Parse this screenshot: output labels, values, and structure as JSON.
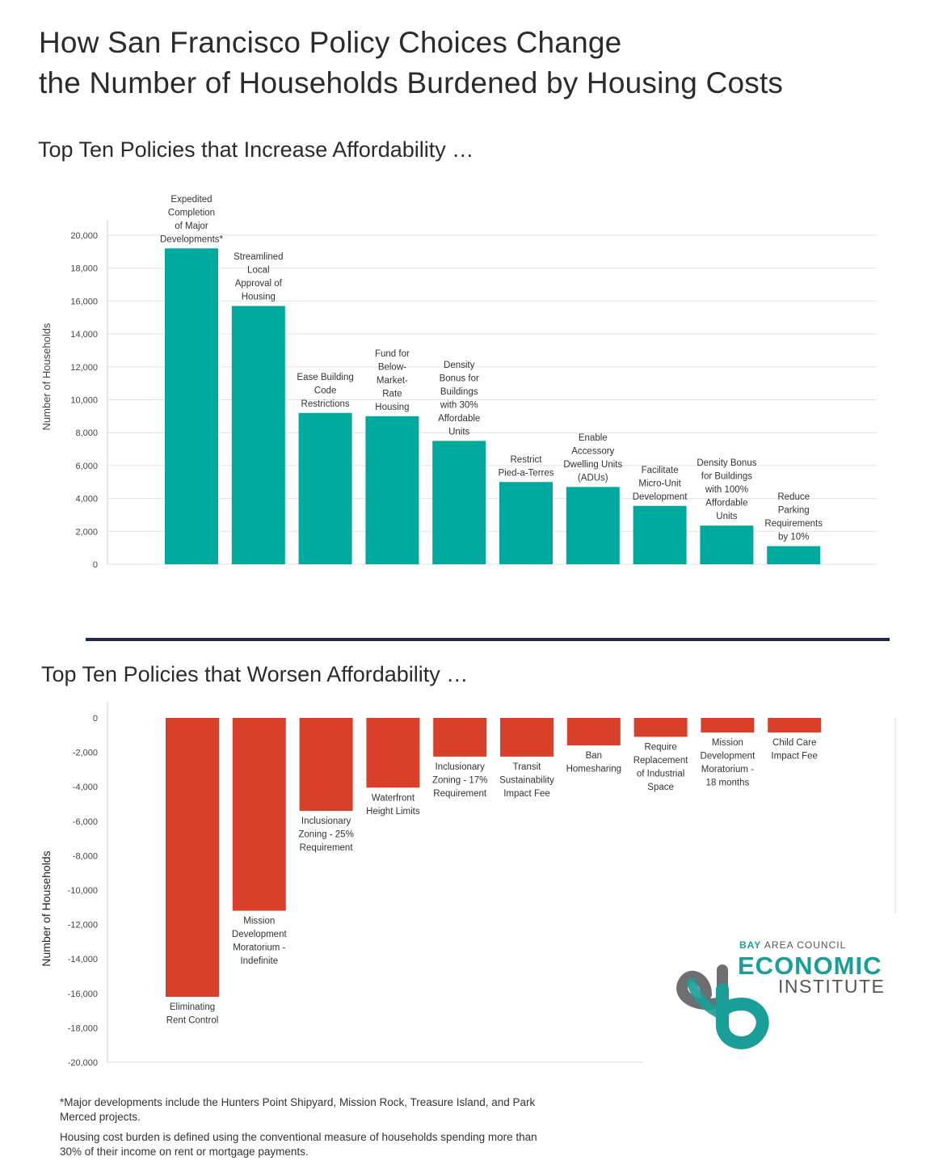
{
  "title": {
    "line1": "How San Francisco Policy Choices Change",
    "line2": "the Number of Households Burdened by Housing Costs"
  },
  "colors": {
    "increase": "#00a99d",
    "worsen": "#d9402a",
    "grid": "#d9d9d9",
    "divider": "#1c2a55",
    "logo_teal": "#1a9e98",
    "logo_gray": "#6d6e71"
  },
  "chart_data": [
    {
      "type": "bar",
      "title": "Top Ten Policies that Increase Affordability …",
      "xlabel": "",
      "ylabel": "Number of Households",
      "ylim": [
        0,
        20000
      ],
      "yticks": [
        0,
        2000,
        4000,
        6000,
        8000,
        10000,
        12000,
        14000,
        16000,
        18000,
        20000
      ],
      "ytick_labels": [
        "0",
        "2,000",
        "4,000",
        "6,000",
        "8,000",
        "10,000",
        "12,000",
        "14,000",
        "16,000",
        "18,000",
        "20,000"
      ],
      "grid": true,
      "categories": [
        [
          "Expedited",
          "Completion",
          "of Major",
          "Developments*"
        ],
        [
          "Streamlined",
          "Local",
          "Approval of",
          "Housing"
        ],
        [
          "Ease Building",
          "Code",
          "Restrictions"
        ],
        [
          "Fund for",
          "Below-",
          "Market-",
          "Rate",
          "Housing"
        ],
        [
          "Density",
          "Bonus for",
          "Buildings",
          "with 30%",
          "Affordable",
          "Units"
        ],
        [
          "Restrict",
          "Pied-a-Terres"
        ],
        [
          "Enable",
          "Accessory",
          "Dwelling Units",
          "(ADUs)"
        ],
        [
          "Facilitate",
          "Micro-Unit",
          "Development"
        ],
        [
          "Density Bonus",
          "for Buildings",
          "with 100%",
          "Affordable",
          "Units"
        ],
        [
          "Reduce",
          "Parking",
          "Requirements",
          "by 10%"
        ]
      ],
      "values": [
        19200,
        15700,
        9200,
        9000,
        7500,
        5000,
        4700,
        3550,
        2350,
        1100
      ]
    },
    {
      "type": "bar",
      "title": "Top Ten Policies that Worsen Affordability …",
      "xlabel": "",
      "ylabel": "Number of Households",
      "ylim": [
        -20000,
        0
      ],
      "yticks": [
        0,
        -2000,
        -4000,
        -6000,
        -8000,
        -10000,
        -12000,
        -14000,
        -16000,
        -18000,
        -20000
      ],
      "ytick_labels": [
        "0",
        "-2,000",
        "-4,000",
        "-6,000",
        "-8,000",
        "-10,000",
        "-12,000",
        "-14,000",
        "-16,000",
        "-18,000",
        "-20,000"
      ],
      "grid": false,
      "categories": [
        [
          "Eliminating",
          "Rent Control"
        ],
        [
          "Mission",
          "Development",
          "Moratorium -",
          "Indefinite"
        ],
        [
          "Inclusionary",
          "Zoning - 25%",
          "Requirement"
        ],
        [
          "Waterfront",
          "Height Limits"
        ],
        [
          "Inclusionary",
          "Zoning - 17%",
          "Requirement"
        ],
        [
          "Transit",
          "Sustainability",
          "Impact Fee"
        ],
        [
          "Ban",
          "Homesharing"
        ],
        [
          "Require",
          "Replacement",
          "of Industrial",
          "Space"
        ],
        [
          "Mission",
          "Development",
          "Moratorium -",
          "18 months"
        ],
        [
          "Child Care",
          "Impact Fee"
        ]
      ],
      "values": [
        -16200,
        -11200,
        -5400,
        -4050,
        -2250,
        -2250,
        -1600,
        -1100,
        -850,
        -850
      ]
    }
  ],
  "logo": {
    "bay": "BAY",
    "area_council": "AREA COUNCIL",
    "economic": "ECONOMIC",
    "institute": "INSTITUTE"
  },
  "footnotes": {
    "note1": "*Major developments include the Hunters Point Shipyard, Mission Rock, Treasure Island, and Park Merced projects.",
    "note2": "Housing cost burden is defined using the conventional measure of households spending more than 30% of their income on rent or mortgage payments."
  }
}
